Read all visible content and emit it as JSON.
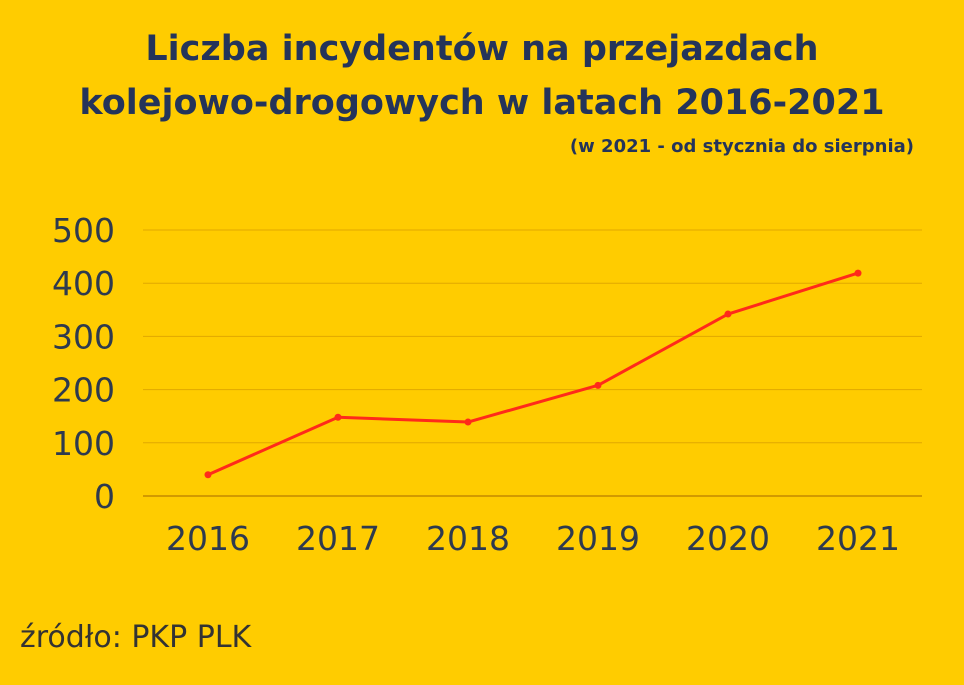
{
  "title_line1": "Liczba incydentów na przejazdach",
  "title_line2": "kolejowo-drogowych w latach 2016-2021",
  "subtitle": "(w 2021 - od stycznia do sierpnia)",
  "source": "źródło: PKP PLK",
  "colors": {
    "background": "#FFCC00",
    "title": "#24345A",
    "line": "#FF2A1A",
    "grid": "#E0A800",
    "axis": "#C48A00"
  },
  "chart_data": {
    "type": "line",
    "categories": [
      "2016",
      "2017",
      "2018",
      "2019",
      "2020",
      "2021"
    ],
    "values": [
      40,
      148,
      139,
      208,
      342,
      419
    ],
    "ylim": [
      0,
      500
    ],
    "yticks": [
      0,
      100,
      200,
      300,
      400,
      500
    ],
    "grid": true,
    "title": "Liczba incydentów na przejazdach kolejowo-drogowych w latach 2016-2021",
    "subtitle": "(w 2021 - od stycznia do sierpnia)"
  }
}
